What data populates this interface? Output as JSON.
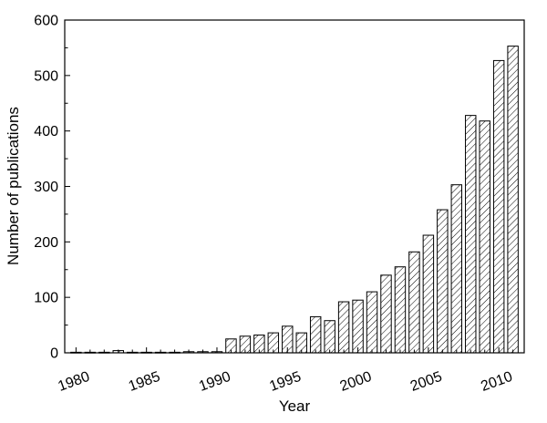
{
  "chart_data": {
    "type": "bar",
    "title": "",
    "xlabel": "Year",
    "ylabel": "Number of publications",
    "x": [
      1980,
      1981,
      1982,
      1983,
      1984,
      1985,
      1986,
      1987,
      1988,
      1989,
      1990,
      1991,
      1992,
      1993,
      1994,
      1995,
      1996,
      1997,
      1998,
      1999,
      2000,
      2001,
      2002,
      2003,
      2004,
      2005,
      2006,
      2007,
      2008,
      2009,
      2010,
      2011
    ],
    "values": [
      1,
      1,
      1,
      4,
      1,
      1,
      1,
      1,
      2,
      2,
      2,
      25,
      30,
      32,
      36,
      48,
      36,
      65,
      58,
      92,
      95,
      110,
      140,
      155,
      182,
      212,
      258,
      303,
      428,
      418,
      527,
      553
    ],
    "xlim": [
      1979.2,
      2011.8
    ],
    "ylim": [
      0,
      600
    ],
    "x_ticks": [
      "1980",
      "1985",
      "1990",
      "1995",
      "2000",
      "2005",
      "2010"
    ],
    "y_ticks": [
      "0",
      "100",
      "200",
      "300",
      "400",
      "500",
      "600"
    ],
    "bar_fill": "hatched",
    "bar_color": "#000000",
    "grid": false,
    "legend": "none"
  }
}
